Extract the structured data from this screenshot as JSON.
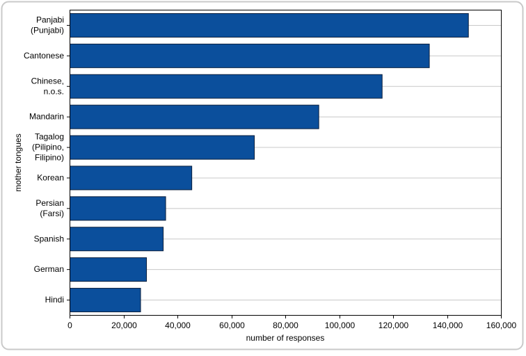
{
  "chart_data": {
    "type": "bar",
    "orientation": "horizontal",
    "categories": [
      [
        "Panjabi",
        "(Punjabi)"
      ],
      [
        "Cantonese"
      ],
      [
        "Chinese,",
        "n.o.s."
      ],
      [
        "Mandarin"
      ],
      [
        "Tagalog",
        "(Pilipino,",
        "Filipino)"
      ],
      [
        "Korean"
      ],
      [
        "Persian",
        "(Farsi)"
      ],
      [
        "Spanish"
      ],
      [
        "German"
      ],
      [
        "Hindi"
      ]
    ],
    "values": [
      147800,
      133300,
      115800,
      92300,
      68400,
      45200,
      35500,
      34600,
      28400,
      26200
    ],
    "xlabel": "number of responses",
    "ylabel": "mother tongues",
    "xlim": [
      0,
      160000
    ],
    "xticks": [
      0,
      20000,
      40000,
      60000,
      80000,
      100000,
      120000,
      140000,
      160000
    ],
    "xtick_labels": [
      "0",
      "20,000",
      "40,000",
      "60,000",
      "80,000",
      "100,000",
      "120,000",
      "140,000",
      "160,000"
    ],
    "grid": "horizontal",
    "bar_color": "#0b4f9c",
    "bar_stroke": "#0a1e3c",
    "grid_color": "#c8c8c8",
    "frame_color": "#c9c9c9"
  }
}
